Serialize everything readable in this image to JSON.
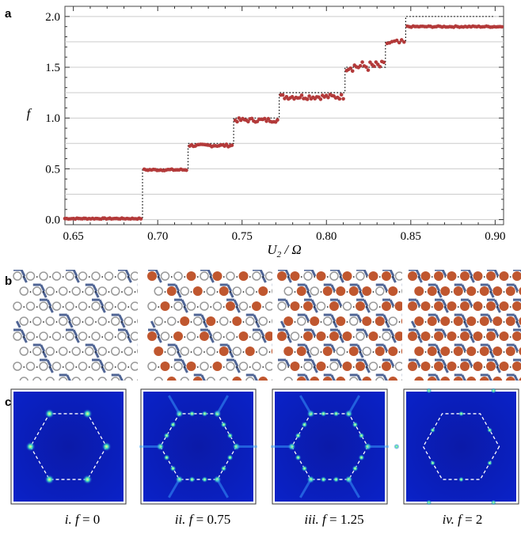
{
  "panels": {
    "a": "a",
    "b": "b",
    "c": "c"
  },
  "chart_data": {
    "type": "scatter",
    "xlabel": "U₂ / Ω",
    "ylabel": "f",
    "xlim": [
      0.645,
      0.905
    ],
    "ylim": [
      -0.05,
      2.1
    ],
    "x_ticks": [
      "0.65",
      "0.70",
      "0.75",
      "0.80",
      "0.85",
      "0.90"
    ],
    "x_tick_values": [
      0.65,
      0.7,
      0.75,
      0.8,
      0.85,
      0.9
    ],
    "y_ticks": [
      "0.0",
      "0.5",
      "1.0",
      "1.5",
      "2.0"
    ],
    "y_tick_values": [
      0.0,
      0.5,
      1.0,
      1.5,
      2.0
    ],
    "grid": "horizontal",
    "series": [
      {
        "kind": "staircase",
        "style": "dotted",
        "color": "#000000",
        "x": [
          0.645,
          0.691,
          0.691,
          0.718,
          0.718,
          0.745,
          0.745,
          0.772,
          0.772,
          0.811,
          0.811,
          0.835,
          0.835,
          0.847,
          0.847,
          0.9
        ],
        "y": [
          0.0,
          0.0,
          0.5,
          0.5,
          0.75,
          0.75,
          1.0,
          1.0,
          1.25,
          1.25,
          1.5,
          1.5,
          1.75,
          1.75,
          2.0,
          2.0
        ]
      },
      {
        "kind": "points",
        "color": "#b33a3a",
        "segments": [
          {
            "x0": 0.645,
            "x1": 0.69,
            "n": 45,
            "y": 0.01,
            "jitter": 0.005
          },
          {
            "x0": 0.692,
            "x1": 0.717,
            "n": 24,
            "y": 0.49,
            "jitter": 0.008
          },
          {
            "x0": 0.719,
            "x1": 0.744,
            "n": 24,
            "y": 0.73,
            "jitter": 0.012
          },
          {
            "x0": 0.746,
            "x1": 0.771,
            "n": 24,
            "y": 0.98,
            "jitter": 0.02
          },
          {
            "x0": 0.773,
            "x1": 0.81,
            "n": 34,
            "y": 1.21,
            "jitter": 0.025
          },
          {
            "x0": 0.812,
            "x1": 0.834,
            "n": 20,
            "y": 1.51,
            "jitter": 0.05
          },
          {
            "x0": 0.836,
            "x1": 0.846,
            "n": 8,
            "y": 1.74,
            "jitter": 0.03
          },
          {
            "x0": 0.848,
            "x1": 0.904,
            "n": 50,
            "y": 1.9,
            "jitter": 0.006
          }
        ]
      }
    ]
  },
  "lattices": [
    {
      "id": "i",
      "filled": 0.0
    },
    {
      "id": "ii",
      "filled": 0.375
    },
    {
      "id": "iii",
      "filled": 0.625
    },
    {
      "id": "iv",
      "filled": 1.0
    }
  ],
  "spectra": [
    {
      "id": "i",
      "spots": "inner"
    },
    {
      "id": "ii",
      "spots": "edges"
    },
    {
      "id": "iii",
      "spots": "edges"
    },
    {
      "id": "iv",
      "spots": "outer"
    }
  ],
  "colors": {
    "data_points": "#b33a3a",
    "filled_site": "#c0572f",
    "empty_site": "#999999",
    "bond": "#4f6494",
    "spectrum_background": "#0a1fb0"
  },
  "captions": [
    {
      "roman": "i.",
      "f": "f",
      "eq": " = 0"
    },
    {
      "roman": "ii.",
      "f": "f",
      "eq": " = 0.75"
    },
    {
      "roman": "iii.",
      "f": "f",
      "eq": " = 1.25"
    },
    {
      "roman": "iv.",
      "f": "f",
      "eq": " = 2"
    }
  ]
}
